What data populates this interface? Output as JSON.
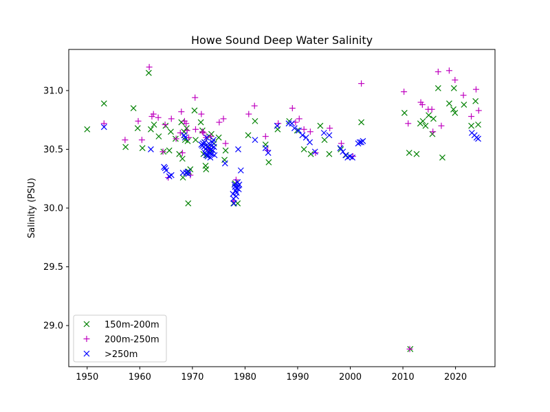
{
  "chart_data": {
    "type": "scatter",
    "title": "Howe Sound Deep Water Salinity",
    "xlabel": "",
    "ylabel": "Salinity (PSU)",
    "xlim": [
      1946.5,
      2027.5
    ],
    "ylim": [
      28.65,
      31.35
    ],
    "xticks": [
      1950,
      1960,
      1970,
      1980,
      1990,
      2000,
      2010,
      2020
    ],
    "yticks": [
      29.0,
      29.5,
      30.0,
      30.5,
      31.0
    ],
    "ytick_labels": [
      "29.0",
      "29.5",
      "30.0",
      "30.5",
      "31.0"
    ],
    "grid": false,
    "legend_position": "lower-left",
    "series": [
      {
        "name": "150m-200m",
        "marker": "x",
        "color": "#008000",
        "points": [
          [
            1950.0,
            30.67
          ],
          [
            1953.2,
            30.89
          ],
          [
            1957.3,
            30.52
          ],
          [
            1958.8,
            30.85
          ],
          [
            1959.6,
            30.68
          ],
          [
            1960.5,
            30.51
          ],
          [
            1961.7,
            31.15
          ],
          [
            1962.1,
            30.67
          ],
          [
            1962.7,
            30.71
          ],
          [
            1963.6,
            30.61
          ],
          [
            1964.5,
            30.48
          ],
          [
            1964.9,
            30.7
          ],
          [
            1965.6,
            30.49
          ],
          [
            1965.9,
            30.65
          ],
          [
            1966.8,
            30.59
          ],
          [
            1967.5,
            30.46
          ],
          [
            1967.9,
            30.73
          ],
          [
            1968.1,
            30.42
          ],
          [
            1968.2,
            30.26
          ],
          [
            1968.4,
            30.65
          ],
          [
            1968.6,
            30.58
          ],
          [
            1968.9,
            30.68
          ],
          [
            1969.1,
            30.57
          ],
          [
            1969.3,
            30.31
          ],
          [
            1969.6,
            30.33
          ],
          [
            1969.2,
            30.04
          ],
          [
            1970.4,
            30.83
          ],
          [
            1970.6,
            30.58
          ],
          [
            1971.6,
            30.73
          ],
          [
            1971.9,
            30.66
          ],
          [
            1972.1,
            30.46
          ],
          [
            1972.3,
            30.56
          ],
          [
            1972.5,
            30.36
          ],
          [
            1972.6,
            30.33
          ],
          [
            1972.8,
            30.45
          ],
          [
            1973.0,
            30.52
          ],
          [
            1973.2,
            30.61
          ],
          [
            1973.4,
            30.49
          ],
          [
            1973.6,
            30.63
          ],
          [
            1974.1,
            30.55
          ],
          [
            1975.0,
            30.6
          ],
          [
            1976.1,
            30.41
          ],
          [
            1976.3,
            30.49
          ],
          [
            1977.8,
            30.04
          ],
          [
            1978.1,
            30.21
          ],
          [
            1978.6,
            30.04
          ],
          [
            1980.6,
            30.62
          ],
          [
            1981.9,
            30.74
          ],
          [
            1983.9,
            30.54
          ],
          [
            1984.5,
            30.39
          ],
          [
            1986.2,
            30.67
          ],
          [
            1988.4,
            30.74
          ],
          [
            1989.9,
            30.66
          ],
          [
            1991.2,
            30.5
          ],
          [
            1992.5,
            30.46
          ],
          [
            1994.3,
            30.7
          ],
          [
            1995.1,
            30.58
          ],
          [
            1996.0,
            30.46
          ],
          [
            1998.2,
            30.5
          ],
          [
            1999.2,
            30.45
          ],
          [
            2002.1,
            30.73
          ],
          [
            2010.3,
            30.81
          ],
          [
            2011.2,
            30.47
          ],
          [
            2012.6,
            30.46
          ],
          [
            2013.3,
            30.72
          ],
          [
            2013.8,
            30.74
          ],
          [
            2014.3,
            30.7
          ],
          [
            2014.9,
            30.79
          ],
          [
            2015.8,
            30.76
          ],
          [
            2015.6,
            30.63
          ],
          [
            2016.7,
            31.02
          ],
          [
            2017.5,
            30.43
          ],
          [
            2018.8,
            30.89
          ],
          [
            2019.6,
            30.84
          ],
          [
            2019.7,
            31.02
          ],
          [
            2019.9,
            30.81
          ],
          [
            2021.6,
            30.88
          ],
          [
            2023.0,
            30.7
          ],
          [
            2023.8,
            30.91
          ],
          [
            2024.3,
            30.71
          ],
          [
            2011.4,
            28.8
          ]
        ]
      },
      {
        "name": "200m-250m",
        "marker": "+",
        "color": "#bf00bf",
        "points": [
          [
            1953.2,
            30.72
          ],
          [
            1957.2,
            30.58
          ],
          [
            1959.7,
            30.74
          ],
          [
            1960.4,
            30.58
          ],
          [
            1961.8,
            31.2
          ],
          [
            1962.3,
            30.78
          ],
          [
            1962.6,
            30.8
          ],
          [
            1963.5,
            30.77
          ],
          [
            1964.4,
            30.48
          ],
          [
            1964.8,
            30.71
          ],
          [
            1965.4,
            30.26
          ],
          [
            1966.0,
            30.76
          ],
          [
            1966.9,
            30.59
          ],
          [
            1967.7,
            30.64
          ],
          [
            1967.9,
            30.82
          ],
          [
            1968.1,
            30.47
          ],
          [
            1968.5,
            30.74
          ],
          [
            1968.8,
            30.72
          ],
          [
            1969.0,
            30.66
          ],
          [
            1969.3,
            30.6
          ],
          [
            1969.6,
            30.28
          ],
          [
            1970.5,
            30.94
          ],
          [
            1970.6,
            30.67
          ],
          [
            1971.7,
            30.8
          ],
          [
            1971.9,
            30.65
          ],
          [
            1972.1,
            30.64
          ],
          [
            1972.6,
            30.6
          ],
          [
            1973.1,
            30.5
          ],
          [
            1973.5,
            30.61
          ],
          [
            1975.1,
            30.73
          ],
          [
            1975.9,
            30.76
          ],
          [
            1976.3,
            30.55
          ],
          [
            1977.8,
            30.06
          ],
          [
            1978.3,
            30.24
          ],
          [
            1980.7,
            30.8
          ],
          [
            1981.8,
            30.87
          ],
          [
            1983.9,
            30.61
          ],
          [
            1984.3,
            30.49
          ],
          [
            1986.3,
            30.72
          ],
          [
            1989.0,
            30.85
          ],
          [
            1989.6,
            30.73
          ],
          [
            1990.3,
            30.76
          ],
          [
            1991.2,
            30.67
          ],
          [
            1992.4,
            30.65
          ],
          [
            1993.4,
            30.47
          ],
          [
            1996.1,
            30.68
          ],
          [
            1998.3,
            30.55
          ],
          [
            2000.5,
            30.44
          ],
          [
            2002.1,
            31.06
          ],
          [
            2010.2,
            30.99
          ],
          [
            2011.0,
            30.72
          ],
          [
            2013.4,
            30.9
          ],
          [
            2013.7,
            30.88
          ],
          [
            2014.8,
            30.84
          ],
          [
            2015.5,
            30.84
          ],
          [
            2015.7,
            30.65
          ],
          [
            2016.7,
            31.16
          ],
          [
            2017.3,
            30.7
          ],
          [
            2018.8,
            31.17
          ],
          [
            2019.9,
            31.09
          ],
          [
            2021.5,
            30.96
          ],
          [
            2023.0,
            30.78
          ],
          [
            2023.9,
            31.01
          ],
          [
            2024.4,
            30.83
          ],
          [
            2011.3,
            28.8
          ]
        ]
      },
      {
        "name": ">250m",
        "marker": "x",
        "color": "#0000ff",
        "points": [
          [
            1953.2,
            30.69
          ],
          [
            1962.1,
            30.5
          ],
          [
            1964.6,
            30.35
          ],
          [
            1964.8,
            30.34
          ],
          [
            1965.0,
            30.32
          ],
          [
            1965.6,
            30.27
          ],
          [
            1966.0,
            30.28
          ],
          [
            1968.2,
            30.3
          ],
          [
            1968.4,
            30.62
          ],
          [
            1968.6,
            30.6
          ],
          [
            1968.8,
            30.3
          ],
          [
            1969.1,
            30.31
          ],
          [
            1969.2,
            30.29
          ],
          [
            1971.7,
            30.54
          ],
          [
            1971.9,
            30.53
          ],
          [
            1972.0,
            30.55
          ],
          [
            1972.2,
            30.52
          ],
          [
            1972.3,
            30.56
          ],
          [
            1972.4,
            30.47
          ],
          [
            1972.5,
            30.5
          ],
          [
            1972.6,
            30.45
          ],
          [
            1972.7,
            30.6
          ],
          [
            1972.8,
            30.52
          ],
          [
            1972.9,
            30.44
          ],
          [
            1973.0,
            30.48
          ],
          [
            1973.1,
            30.55
          ],
          [
            1973.2,
            30.51
          ],
          [
            1973.3,
            30.47
          ],
          [
            1973.4,
            30.43
          ],
          [
            1973.5,
            30.5
          ],
          [
            1973.6,
            30.53
          ],
          [
            1973.7,
            30.46
          ],
          [
            1973.8,
            30.56
          ],
          [
            1973.9,
            30.49
          ],
          [
            1974.0,
            30.58
          ],
          [
            1974.1,
            30.52
          ],
          [
            1974.2,
            30.45
          ],
          [
            1976.2,
            30.38
          ],
          [
            1977.7,
            30.12
          ],
          [
            1977.8,
            30.08
          ],
          [
            1977.9,
            30.04
          ],
          [
            1978.0,
            30.2
          ],
          [
            1978.1,
            30.18
          ],
          [
            1978.2,
            30.15
          ],
          [
            1978.3,
            30.1
          ],
          [
            1978.4,
            30.13
          ],
          [
            1978.5,
            30.17
          ],
          [
            1978.6,
            30.22
          ],
          [
            1978.7,
            30.19
          ],
          [
            1978.8,
            30.16
          ],
          [
            1978.9,
            30.2
          ],
          [
            1978.7,
            30.5
          ],
          [
            1979.2,
            30.32
          ],
          [
            1981.9,
            30.58
          ],
          [
            1983.9,
            30.51
          ],
          [
            1984.4,
            30.47
          ],
          [
            1986.1,
            30.7
          ],
          [
            1988.3,
            30.72
          ],
          [
            1988.9,
            30.72
          ],
          [
            1989.4,
            30.68
          ],
          [
            1990.2,
            30.66
          ],
          [
            1990.9,
            30.62
          ],
          [
            1991.6,
            30.6
          ],
          [
            1992.3,
            30.56
          ],
          [
            1993.3,
            30.48
          ],
          [
            1995.0,
            30.64
          ],
          [
            1996.0,
            30.62
          ],
          [
            1998.1,
            30.51
          ],
          [
            1998.6,
            30.48
          ],
          [
            1999.1,
            30.45
          ],
          [
            1999.5,
            30.43
          ],
          [
            1999.9,
            30.44
          ],
          [
            2000.4,
            30.43
          ],
          [
            2001.5,
            30.55
          ],
          [
            2001.8,
            30.56
          ],
          [
            2002.1,
            30.56
          ],
          [
            2002.4,
            30.57
          ],
          [
            2023.1,
            30.64
          ],
          [
            2023.6,
            30.62
          ],
          [
            2024.0,
            30.6
          ],
          [
            2024.3,
            30.59
          ]
        ]
      }
    ]
  }
}
